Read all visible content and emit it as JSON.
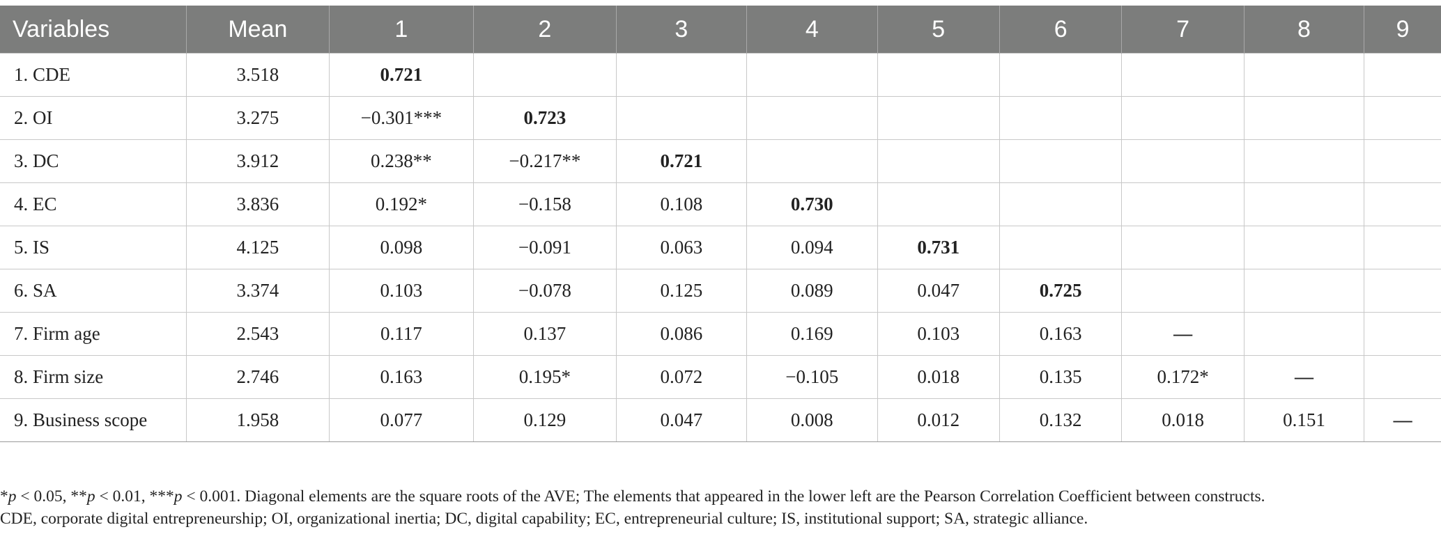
{
  "table": {
    "headers": [
      "Variables",
      "Mean",
      "1",
      "2",
      "3",
      "4",
      "5",
      "6",
      "7",
      "8",
      "9"
    ],
    "rows": [
      {
        "label": "1. CDE",
        "mean": "3.518",
        "cells": [
          "0.721",
          "",
          "",
          "",
          "",
          "",
          "",
          "",
          ""
        ]
      },
      {
        "label": "2. OI",
        "mean": "3.275",
        "cells": [
          "−0.301***",
          "0.723",
          "",
          "",
          "",
          "",
          "",
          "",
          ""
        ]
      },
      {
        "label": "3. DC",
        "mean": "3.912",
        "cells": [
          "0.238**",
          "−0.217**",
          "0.721",
          "",
          "",
          "",
          "",
          "",
          ""
        ]
      },
      {
        "label": "4. EC",
        "mean": "3.836",
        "cells": [
          "0.192*",
          "−0.158",
          "0.108",
          "0.730",
          "",
          "",
          "",
          "",
          ""
        ]
      },
      {
        "label": "5. IS",
        "mean": "4.125",
        "cells": [
          "0.098",
          "−0.091",
          "0.063",
          "0.094",
          "0.731",
          "",
          "",
          "",
          ""
        ]
      },
      {
        "label": "6. SA",
        "mean": "3.374",
        "cells": [
          "0.103",
          "−0.078",
          "0.125",
          "0.089",
          "0.047",
          "0.725",
          "",
          "",
          ""
        ]
      },
      {
        "label": "7. Firm age",
        "mean": "2.543",
        "cells": [
          "0.117",
          "0.137",
          "0.086",
          "0.169",
          "0.103",
          "0.163",
          "—",
          "",
          ""
        ]
      },
      {
        "label": "8. Firm size",
        "mean": "2.746",
        "cells": [
          "0.163",
          "0.195*",
          "0.072",
          "−0.105",
          "0.018",
          "0.135",
          "0.172*",
          "—",
          ""
        ]
      },
      {
        "label": "9. Business scope",
        "mean": "1.958",
        "cells": [
          "0.077",
          "0.129",
          "0.047",
          "0.008",
          "0.012",
          "0.132",
          "0.018",
          "0.151",
          "—"
        ]
      }
    ]
  },
  "note": {
    "sig_1": "p",
    "sig_1_text": " < 0.05, **",
    "sig_2": "p",
    "sig_2_text": " < 0.01, ***",
    "sig_3": "p",
    "sig_3_text": " < 0.001. Diagonal elements are the square roots of the AVE; The elements that appeared in the lower left are the Pearson Correlation Coefficient between constructs.",
    "line2": "CDE, corporate digital entrepreneurship; OI, organizational inertia; DC, digital capability; EC, entrepreneurial culture; IS, institutional support; SA, strategic alliance."
  }
}
